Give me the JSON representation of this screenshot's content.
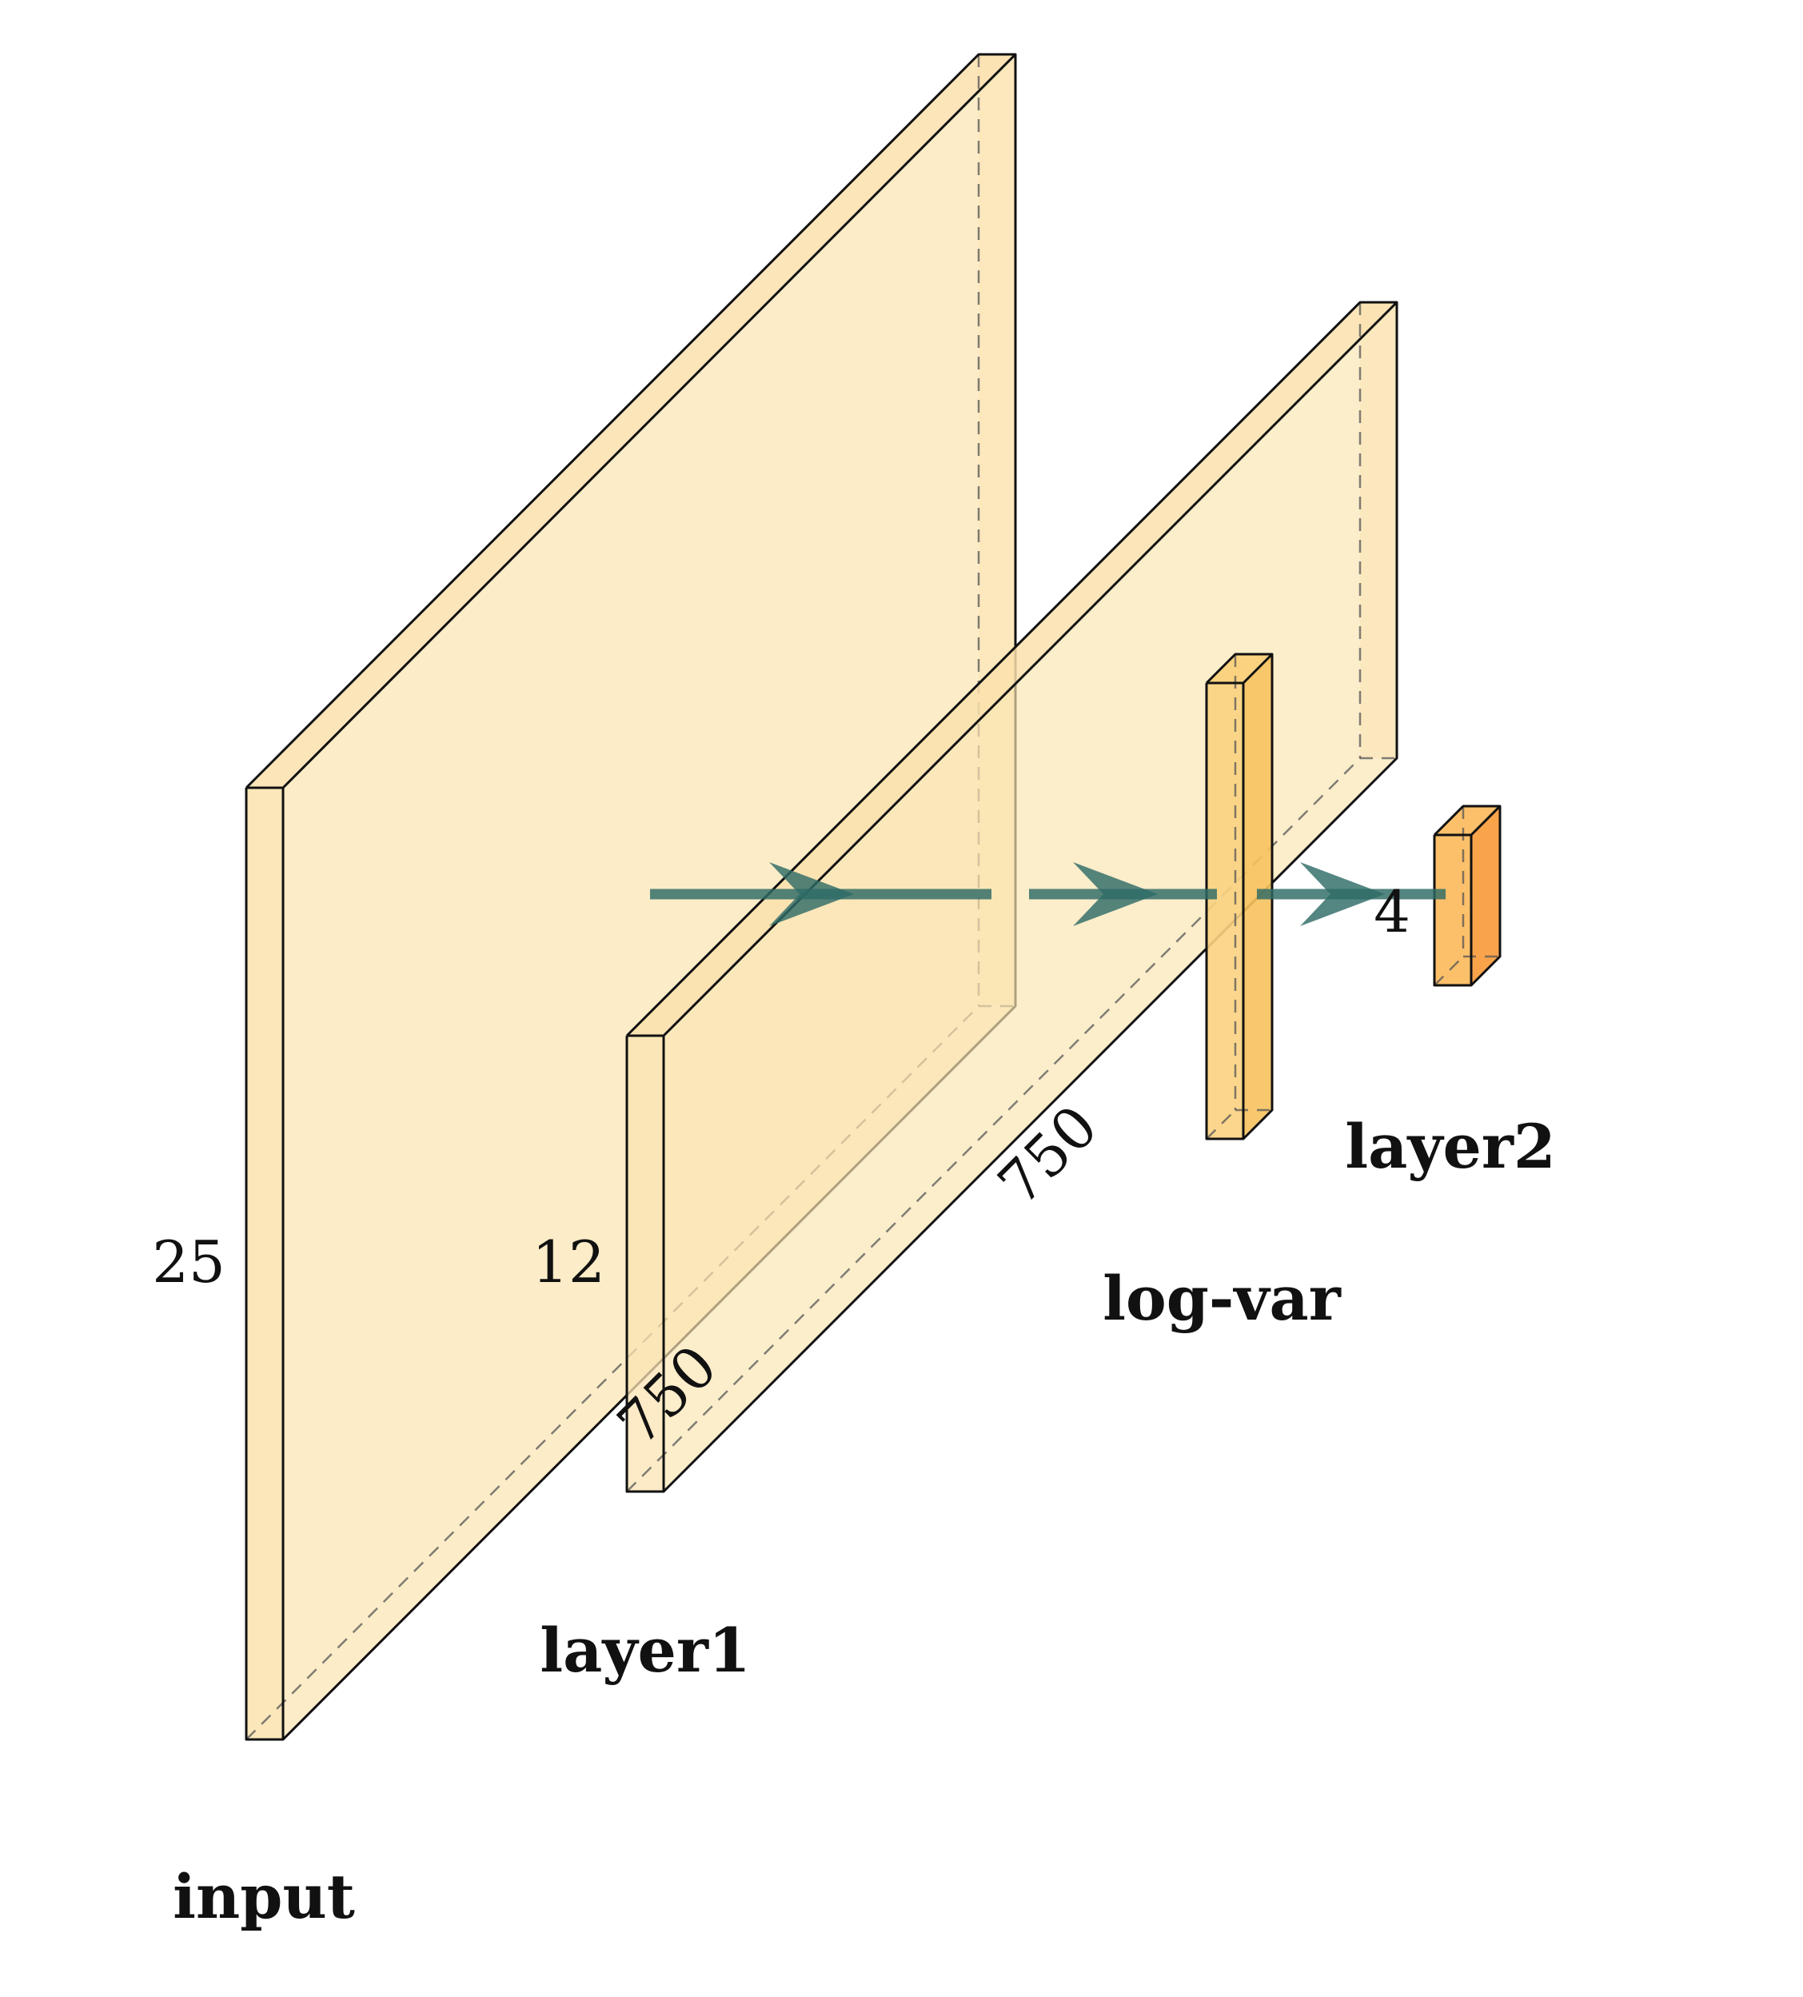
{
  "diagram": {
    "title": "",
    "layers": [
      {
        "id": "input",
        "label": "input",
        "height_label": "25",
        "depth_label": ""
      },
      {
        "id": "layer1",
        "label": "layer1",
        "height_label": "12",
        "depth_label": "750"
      },
      {
        "id": "log-var",
        "label": "log-var",
        "height_label": "",
        "depth_label": "750"
      },
      {
        "id": "layer2",
        "label": "layer2",
        "height_label": "4",
        "depth_label": ""
      }
    ],
    "connections": [
      {
        "from": "layer1",
        "to": "log-var"
      },
      {
        "from": "log-var",
        "to": "layer2"
      },
      {
        "from": "layer2",
        "to": "output"
      }
    ]
  },
  "colors": {
    "front_face": "#fbe4b3",
    "side_face": "#f8d99a",
    "top_face": "#fae0ad",
    "dense_front": "#fbd27f",
    "dense_side": "#f7c25e",
    "output_front": "#fdc06a",
    "output_side": "#f9a34a",
    "edge": "#111111",
    "arrow": "#2e6b66",
    "background": "#ffffff"
  }
}
